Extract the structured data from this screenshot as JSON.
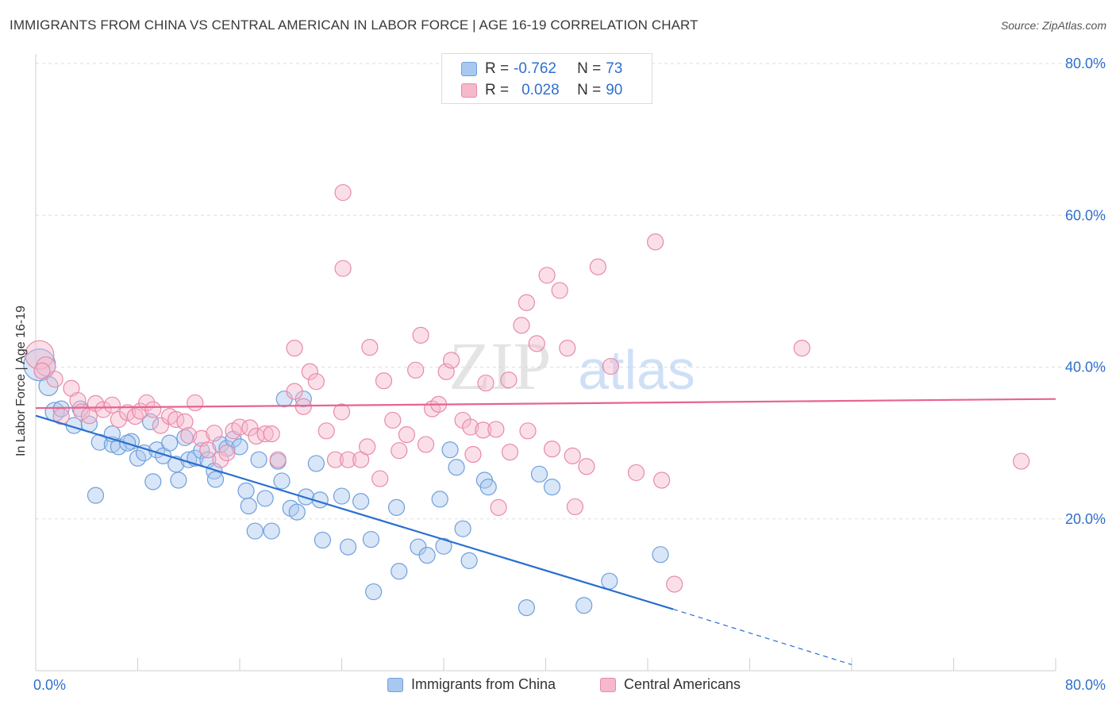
{
  "title": "IMMIGRANTS FROM CHINA VS CENTRAL AMERICAN IN LABOR FORCE | AGE 16-19 CORRELATION CHART",
  "source": "Source: ZipAtlas.com",
  "watermark": {
    "zip": "ZIP",
    "atlas": "atlas"
  },
  "legend_top": [
    {
      "r_label": "R =",
      "r_value": "-0.762",
      "n_label": "N =",
      "n_value": "73",
      "color": "#a9c8f0"
    },
    {
      "r_label": "R =",
      "r_value": "0.028",
      "n_label": "N =",
      "n_value": "90",
      "color": "#f6b8cb"
    }
  ],
  "colors": {
    "blue_fill": "#a9c8f0",
    "blue_stroke": "#6f9fdc",
    "blue_line": "#2a6fd1",
    "pink_fill": "#f6b8cb",
    "pink_stroke": "#e88aa8",
    "pink_line": "#e7648f",
    "axis_label": "#2f6fce",
    "grid": "#dedede"
  },
  "chart_data": {
    "type": "scatter",
    "title": "IMMIGRANTS FROM CHINA VS CENTRAL AMERICAN IN LABOR FORCE | AGE 16-19 CORRELATION CHART",
    "xlabel": "",
    "ylabel": "In Labor Force | Age 16-19",
    "xlim": [
      0,
      80
    ],
    "ylim": [
      0,
      80
    ],
    "x_ticks": [
      "0.0%",
      "80.0%"
    ],
    "y_ticks": [
      "20.0%",
      "40.0%",
      "60.0%",
      "80.0%"
    ],
    "y_tick_values": [
      20,
      40,
      60,
      80
    ],
    "grid": true,
    "legend": "bottom",
    "series": [
      {
        "name": "Immigrants from China",
        "color": "#a9c8f0",
        "trend": {
          "x": [
            0,
            50
          ],
          "y": [
            33.6,
            8.1
          ],
          "dashed_to": [
            64,
            0.8
          ]
        },
        "points": [
          [
            0.3,
            40.3,
            20
          ],
          [
            1,
            37.5,
            12
          ],
          [
            1.5,
            34.1,
            12
          ],
          [
            3.5,
            34.5,
            10
          ],
          [
            3,
            32.3,
            10
          ],
          [
            4.2,
            32.5,
            10
          ],
          [
            2,
            34.5,
            10
          ],
          [
            5,
            30.1,
            10
          ],
          [
            6,
            29.8,
            10
          ],
          [
            6.5,
            29.5,
            10
          ],
          [
            7.5,
            30.2,
            10
          ],
          [
            8,
            28.0,
            10
          ],
          [
            8.5,
            28.7,
            10
          ],
          [
            6,
            31.2,
            10
          ],
          [
            7.2,
            30.0,
            10
          ],
          [
            9,
            32.8,
            10
          ],
          [
            9.5,
            29.1,
            10
          ],
          [
            10,
            28.3,
            10
          ],
          [
            10.5,
            30.0,
            10
          ],
          [
            11,
            27.2,
            10
          ],
          [
            11.7,
            30.7,
            10
          ],
          [
            12,
            27.8,
            10
          ],
          [
            12.5,
            28.0,
            10
          ],
          [
            13,
            29.0,
            10
          ],
          [
            13.5,
            27.8,
            10
          ],
          [
            14.5,
            29.8,
            10
          ],
          [
            15,
            29.3,
            10
          ],
          [
            15.5,
            30.5,
            10
          ],
          [
            16,
            29.5,
            10
          ],
          [
            14,
            26.3,
            10
          ],
          [
            9.2,
            24.9,
            10
          ],
          [
            11.2,
            25.1,
            10
          ],
          [
            4.7,
            23.1,
            10
          ],
          [
            14.1,
            25.2,
            10
          ],
          [
            16.5,
            23.7,
            10
          ],
          [
            17.5,
            27.8,
            10
          ],
          [
            19,
            27.6,
            10
          ],
          [
            19.5,
            35.8,
            10
          ],
          [
            21,
            35.8,
            10
          ],
          [
            22,
            27.3,
            10
          ],
          [
            18,
            22.7,
            10
          ],
          [
            16.7,
            21.7,
            10
          ],
          [
            19.3,
            25.0,
            10
          ],
          [
            17.2,
            18.4,
            10
          ],
          [
            18.5,
            18.4,
            10
          ],
          [
            20,
            21.4,
            10
          ],
          [
            21.2,
            22.9,
            10
          ],
          [
            22.3,
            22.5,
            10
          ],
          [
            24,
            23.0,
            10
          ],
          [
            25.5,
            22.3,
            10
          ],
          [
            20.5,
            20.9,
            10
          ],
          [
            22.5,
            17.2,
            10
          ],
          [
            24.5,
            16.3,
            10
          ],
          [
            26.3,
            17.3,
            10
          ],
          [
            28.5,
            13.1,
            10
          ],
          [
            26.5,
            10.4,
            10
          ],
          [
            30,
            16.3,
            10
          ],
          [
            32,
            16.4,
            10
          ],
          [
            30.7,
            15.2,
            10
          ],
          [
            31.7,
            22.6,
            10
          ],
          [
            28.3,
            21.5,
            10
          ],
          [
            34,
            14.5,
            10
          ],
          [
            33.5,
            18.7,
            10
          ],
          [
            35.2,
            25.1,
            10
          ],
          [
            33,
            26.8,
            10
          ],
          [
            35.5,
            24.2,
            10
          ],
          [
            32.5,
            29.1,
            10
          ],
          [
            39.5,
            25.9,
            10
          ],
          [
            40.5,
            24.2,
            10
          ],
          [
            38.5,
            8.3,
            10
          ],
          [
            45,
            11.8,
            10
          ],
          [
            49,
            15.3,
            10
          ],
          [
            43,
            8.6,
            10
          ]
        ]
      },
      {
        "name": "Central Americans",
        "color": "#f6b8cb",
        "trend": {
          "x": [
            0,
            80
          ],
          "y": [
            34.6,
            35.8
          ]
        },
        "points": [
          [
            0.3,
            41.6,
            18
          ],
          [
            0.8,
            40.1,
            12
          ],
          [
            1.5,
            38.4,
            10
          ],
          [
            2.8,
            37.2,
            10
          ],
          [
            3.3,
            35.6,
            10
          ],
          [
            3.6,
            34.1,
            10
          ],
          [
            4.2,
            33.6,
            10
          ],
          [
            4.7,
            35.2,
            10
          ],
          [
            5.3,
            34.4,
            10
          ],
          [
            6,
            35.0,
            10
          ],
          [
            6.5,
            33.1,
            10
          ],
          [
            7.2,
            34.0,
            10
          ],
          [
            7.8,
            33.5,
            10
          ],
          [
            8.2,
            34.2,
            10
          ],
          [
            8.7,
            35.3,
            10
          ],
          [
            9.2,
            34.4,
            10
          ],
          [
            9.8,
            32.3,
            10
          ],
          [
            10.5,
            33.5,
            10
          ],
          [
            11,
            33.1,
            10
          ],
          [
            11.7,
            32.8,
            10
          ],
          [
            12,
            31.0,
            10
          ],
          [
            12.5,
            35.3,
            10
          ],
          [
            13,
            30.6,
            10
          ],
          [
            13.5,
            29.1,
            10
          ],
          [
            14,
            31.3,
            10
          ],
          [
            14.5,
            27.8,
            10
          ],
          [
            15,
            28.7,
            10
          ],
          [
            15.5,
            31.6,
            10
          ],
          [
            16,
            32.1,
            10
          ],
          [
            16.8,
            32.0,
            10
          ],
          [
            17.3,
            30.9,
            10
          ],
          [
            18,
            31.2,
            10
          ],
          [
            18.5,
            31.2,
            10
          ],
          [
            19,
            27.8,
            10
          ],
          [
            20.3,
            36.8,
            10
          ],
          [
            21,
            34.8,
            10
          ],
          [
            21.5,
            39.4,
            10
          ],
          [
            22,
            38.1,
            10
          ],
          [
            22.8,
            31.6,
            10
          ],
          [
            23.5,
            27.8,
            10
          ],
          [
            24,
            34.1,
            10
          ],
          [
            24.5,
            27.8,
            10
          ],
          [
            25.5,
            27.8,
            10
          ],
          [
            26,
            29.5,
            10
          ],
          [
            27,
            25.3,
            10
          ],
          [
            27.3,
            38.2,
            10
          ],
          [
            28,
            33.0,
            10
          ],
          [
            28.5,
            29.0,
            10
          ],
          [
            29.1,
            31.1,
            10
          ],
          [
            29.8,
            39.6,
            10
          ],
          [
            30.2,
            44.2,
            10
          ],
          [
            30.6,
            29.8,
            10
          ],
          [
            31.1,
            34.5,
            10
          ],
          [
            31.6,
            35.1,
            10
          ],
          [
            32.2,
            39.4,
            10
          ],
          [
            32.6,
            40.9,
            10
          ],
          [
            33.5,
            33.0,
            10
          ],
          [
            34.1,
            32.1,
            10
          ],
          [
            34.3,
            28.5,
            10
          ],
          [
            35.1,
            31.7,
            10
          ],
          [
            35.3,
            37.9,
            10
          ],
          [
            36.1,
            31.8,
            10
          ],
          [
            37.1,
            38.3,
            10
          ],
          [
            37.2,
            28.8,
            10
          ],
          [
            36.3,
            21.5,
            10
          ],
          [
            38.1,
            45.5,
            10
          ],
          [
            38.5,
            48.5,
            10
          ],
          [
            38.6,
            31.6,
            10
          ],
          [
            39.3,
            43.1,
            10
          ],
          [
            40.1,
            52.1,
            10
          ],
          [
            40.5,
            29.2,
            10
          ],
          [
            41.1,
            50.1,
            10
          ],
          [
            41.7,
            42.5,
            10
          ],
          [
            42.1,
            28.3,
            10
          ],
          [
            42.3,
            21.6,
            10
          ],
          [
            43.2,
            26.9,
            10
          ],
          [
            44.1,
            53.2,
            10
          ],
          [
            45.1,
            40.1,
            10
          ],
          [
            47.1,
            26.1,
            10
          ],
          [
            48.6,
            56.5,
            10
          ],
          [
            49.1,
            25.1,
            10
          ],
          [
            50.1,
            11.4,
            10
          ],
          [
            20.3,
            42.5,
            10
          ],
          [
            24.1,
            53.0,
            10
          ],
          [
            24.1,
            63.0,
            10
          ],
          [
            60.1,
            42.5,
            10
          ],
          [
            77.3,
            27.6,
            10
          ],
          [
            0.5,
            39.5,
            10
          ],
          [
            2,
            33.5,
            10
          ],
          [
            26.2,
            42.6,
            10
          ]
        ]
      }
    ]
  },
  "legend_bottom": [
    {
      "label": "Immigrants from China",
      "color": "#a9c8f0"
    },
    {
      "label": "Central Americans",
      "color": "#f6b8cb"
    }
  ]
}
